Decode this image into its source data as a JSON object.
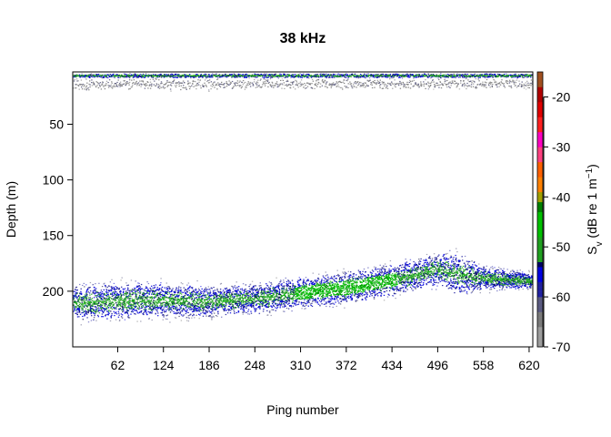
{
  "chart_data": {
    "type": "heatmap",
    "title": "38 kHz",
    "xlabel": "Ping number",
    "ylabel": "Depth (m)",
    "colorbar_label": "S_v (dB re 1 m^-1)",
    "colorbar_label_parts": {
      "main": "S",
      "sub": "v",
      "rest": " (dB re 1 m",
      "sup": "−1",
      "close": ")"
    },
    "x_ticks": [
      "62",
      "124",
      "186",
      "248",
      "310",
      "372",
      "434",
      "496",
      "558",
      "620"
    ],
    "x_tick_values": [
      62,
      124,
      186,
      248,
      310,
      372,
      434,
      496,
      558,
      620
    ],
    "y_ticks": [
      "50",
      "100",
      "150",
      "200"
    ],
    "y_tick_values": [
      50,
      100,
      150,
      200
    ],
    "colorbar_ticks": [
      "-20",
      "-30",
      "-40",
      "-50",
      "-60",
      "-70"
    ],
    "colorbar_tick_values": [
      -20,
      -30,
      -40,
      -50,
      -60,
      -70
    ],
    "xlim": [
      1,
      625
    ],
    "ylim": [
      3,
      250
    ],
    "y_reversed": true,
    "clim": [
      -70,
      -15
    ],
    "colormap": [
      {
        "db": -70,
        "color": "#9c9c9c"
      },
      {
        "db": -66,
        "color": "#7a7a7a"
      },
      {
        "db": -63,
        "color": "#5a5a80"
      },
      {
        "db": -60,
        "color": "#2020a0"
      },
      {
        "db": -57,
        "color": "#0000e0"
      },
      {
        "db": -54,
        "color": "#000060"
      },
      {
        "db": -53,
        "color": "#20a020"
      },
      {
        "db": -48,
        "color": "#00c000"
      },
      {
        "db": -43,
        "color": "#008000"
      },
      {
        "db": -41,
        "color": "#a0a000"
      },
      {
        "db": -39,
        "color": "#ff8000"
      },
      {
        "db": -36,
        "color": "#ff6000"
      },
      {
        "db": -33,
        "color": "#ff4080"
      },
      {
        "db": -30,
        "color": "#ff00c0"
      },
      {
        "db": -27,
        "color": "#ff2020"
      },
      {
        "db": -24,
        "color": "#e00000"
      },
      {
        "db": -21,
        "color": "#b00000"
      },
      {
        "db": -18,
        "color": "#a05020"
      },
      {
        "db": -15,
        "color": "#804000"
      }
    ],
    "layers": [
      {
        "name": "surface band",
        "ping_range": [
          1,
          625
        ],
        "depth_top": [
          4,
          4
        ],
        "depth_bottom": [
          8,
          8
        ],
        "core_sv": -50,
        "edge_sv": -62
      },
      {
        "name": "surface scatter",
        "ping_range": [
          1,
          625
        ],
        "depth_top": [
          8,
          8
        ],
        "depth_bottom": [
          20,
          18
        ],
        "core_sv": -64,
        "edge_sv": -66
      },
      {
        "name": "scattering layer",
        "ping": [
          1,
          62,
          124,
          186,
          248,
          310,
          372,
          434,
          496,
          520,
          558,
          625
        ],
        "depth_top": [
          193,
          190,
          191,
          194,
          192,
          186,
          180,
          174,
          164,
          163,
          176,
          183
        ],
        "depth_bottom": [
          228,
          227,
          225,
          224,
          221,
          216,
          213,
          205,
          196,
          205,
          200,
          198
        ],
        "core_sv": -50,
        "edge_sv": -63
      }
    ]
  }
}
